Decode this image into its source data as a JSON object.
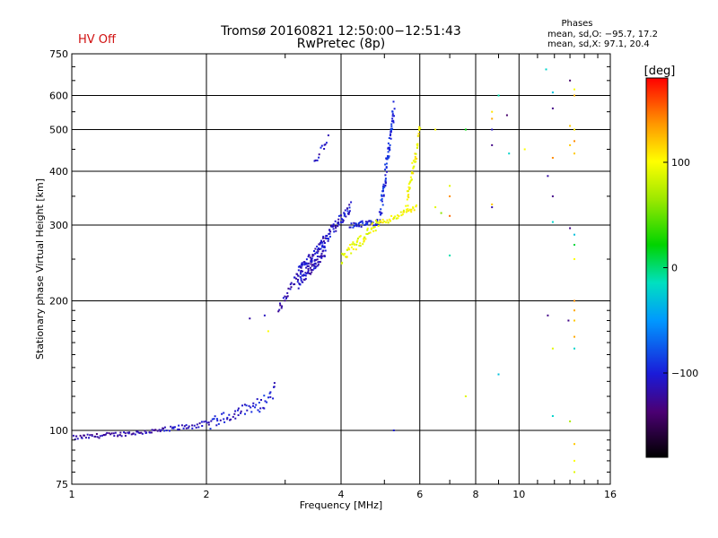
{
  "header": {
    "hv_status": "HV Off",
    "title_line1": "Tromsø 20160821 12:50:00−12:51:43",
    "title_line2": "RwPretec (8p)",
    "phases_title": "Phases",
    "phases_o": "mean, sd,O: −95.7, 17.2",
    "phases_x": "mean, sd,X:  97.1, 20.4"
  },
  "colorbar": {
    "label": "[deg]",
    "ticks": [
      "100",
      "0",
      "−100"
    ],
    "tick_values": [
      100,
      0,
      -100
    ],
    "range": [
      -180,
      180
    ]
  },
  "chart_data": {
    "type": "scatter",
    "xlabel": "Frequency [MHz]",
    "ylabel": "Stationary phase Virtual Height [km]",
    "xscale": "log",
    "yscale": "log",
    "xlim": [
      1,
      16
    ],
    "ylim": [
      75,
      750
    ],
    "xticks": [
      1,
      2,
      4,
      6,
      8,
      10,
      16
    ],
    "xtick_labels": [
      "1",
      "2",
      "4",
      "6",
      "8",
      "10",
      "16"
    ],
    "yticks": [
      75,
      100,
      200,
      300,
      400,
      500,
      600,
      750
    ],
    "ytick_labels": [
      "75",
      "100",
      "200",
      "300",
      "400",
      "500",
      "600",
      "750"
    ],
    "grid": true,
    "point_groups": [
      {
        "f_start": 1.0,
        "f_end": 1.6,
        "h_start": 96,
        "h_end": 100,
        "count": 70,
        "phase": -120,
        "jitter": 0.012
      },
      {
        "f_start": 1.6,
        "f_end": 2.05,
        "h_start": 100,
        "h_end": 104,
        "count": 35,
        "phase": -110,
        "jitter": 0.015
      },
      {
        "f_start": 2.05,
        "f_end": 2.6,
        "h_start": 104,
        "h_end": 115,
        "count": 40,
        "phase": -105,
        "jitter": 0.03
      },
      {
        "f_start": 2.6,
        "f_end": 2.85,
        "h_start": 112,
        "h_end": 125,
        "count": 18,
        "phase": -100,
        "jitter": 0.035
      },
      {
        "f_start": 2.9,
        "f_end": 3.2,
        "h_start": 190,
        "h_end": 230,
        "count": 25,
        "phase": -115,
        "jitter": 0.02
      },
      {
        "f_start": 3.2,
        "f_end": 3.7,
        "h_start": 225,
        "h_end": 270,
        "count": 140,
        "phase": -110,
        "jitter": 0.06
      },
      {
        "f_start": 3.7,
        "f_end": 4.2,
        "h_start": 280,
        "h_end": 330,
        "count": 55,
        "phase": -105,
        "jitter": 0.03
      },
      {
        "f_start": 4.2,
        "f_end": 4.9,
        "h_start": 300,
        "h_end": 305,
        "count": 40,
        "phase": -100,
        "jitter": 0.015
      },
      {
        "f_start": 4.9,
        "f_end": 5.25,
        "h_start": 320,
        "h_end": 560,
        "count": 80,
        "phase": -95,
        "jitter": 0.04
      },
      {
        "f_start": 3.5,
        "f_end": 3.75,
        "h_start": 420,
        "h_end": 480,
        "count": 12,
        "phase": -110,
        "jitter": 0.02
      },
      {
        "f_start": 4.0,
        "f_end": 4.8,
        "h_start": 250,
        "h_end": 300,
        "count": 55,
        "phase": 95,
        "jitter": 0.03
      },
      {
        "f_start": 4.8,
        "f_end": 5.9,
        "h_start": 300,
        "h_end": 330,
        "count": 45,
        "phase": 100,
        "jitter": 0.015
      },
      {
        "f_start": 5.6,
        "f_end": 6.0,
        "h_start": 330,
        "h_end": 500,
        "count": 45,
        "phase": 100,
        "jitter": 0.04
      }
    ],
    "points": [
      {
        "f": 2.7,
        "h": 185,
        "phase": -110
      },
      {
        "f": 2.5,
        "h": 182,
        "phase": -120
      },
      {
        "f": 2.75,
        "h": 170,
        "phase": 100
      },
      {
        "f": 5.25,
        "h": 100,
        "phase": -100
      },
      {
        "f": 6.5,
        "h": 500,
        "phase": 100
      },
      {
        "f": 6.5,
        "h": 330,
        "phase": 90
      },
      {
        "f": 6.7,
        "h": 320,
        "phase": 60
      },
      {
        "f": 7.0,
        "h": 370,
        "phase": 90
      },
      {
        "f": 7.0,
        "h": 350,
        "phase": 140
      },
      {
        "f": 7.0,
        "h": 315,
        "phase": 150
      },
      {
        "f": 7.0,
        "h": 255,
        "phase": -10
      },
      {
        "f": 7.6,
        "h": 500,
        "phase": 20
      },
      {
        "f": 7.6,
        "h": 120,
        "phase": 90
      },
      {
        "f": 8.7,
        "h": 550,
        "phase": 110
      },
      {
        "f": 8.7,
        "h": 530,
        "phase": 130
      },
      {
        "f": 8.7,
        "h": 500,
        "phase": -110
      },
      {
        "f": 8.7,
        "h": 460,
        "phase": -130
      },
      {
        "f": 8.7,
        "h": 335,
        "phase": 120
      },
      {
        "f": 8.7,
        "h": 330,
        "phase": -120
      },
      {
        "f": 9.0,
        "h": 600,
        "phase": -10
      },
      {
        "f": 9.0,
        "h": 135,
        "phase": -30
      },
      {
        "f": 9.4,
        "h": 540,
        "phase": -140
      },
      {
        "f": 9.5,
        "h": 440,
        "phase": -20
      },
      {
        "f": 10.3,
        "h": 450,
        "phase": 100
      },
      {
        "f": 11.5,
        "h": 690,
        "phase": -20
      },
      {
        "f": 11.6,
        "h": 390,
        "phase": -120
      },
      {
        "f": 11.6,
        "h": 185,
        "phase": -130
      },
      {
        "f": 11.9,
        "h": 610,
        "phase": -30
      },
      {
        "f": 11.9,
        "h": 560,
        "phase": -130
      },
      {
        "f": 11.9,
        "h": 430,
        "phase": 140
      },
      {
        "f": 11.9,
        "h": 350,
        "phase": -130
      },
      {
        "f": 11.9,
        "h": 305,
        "phase": -20
      },
      {
        "f": 11.9,
        "h": 155,
        "phase": 90
      },
      {
        "f": 11.9,
        "h": 108,
        "phase": -20
      },
      {
        "f": 13.0,
        "h": 650,
        "phase": -140
      },
      {
        "f": 13.3,
        "h": 620,
        "phase": 100
      },
      {
        "f": 13.3,
        "h": 600,
        "phase": 130
      },
      {
        "f": 13.0,
        "h": 510,
        "phase": 120
      },
      {
        "f": 13.3,
        "h": 500,
        "phase": 110
      },
      {
        "f": 13.3,
        "h": 470,
        "phase": 140
      },
      {
        "f": 13.3,
        "h": 440,
        "phase": 120
      },
      {
        "f": 13.0,
        "h": 295,
        "phase": -130
      },
      {
        "f": 13.3,
        "h": 285,
        "phase": -30
      },
      {
        "f": 13.3,
        "h": 270,
        "phase": 10
      },
      {
        "f": 13.3,
        "h": 250,
        "phase": 100
      },
      {
        "f": 13.3,
        "h": 200,
        "phase": 140
      },
      {
        "f": 13.3,
        "h": 190,
        "phase": 130
      },
      {
        "f": 13.3,
        "h": 180,
        "phase": 120
      },
      {
        "f": 13.3,
        "h": 165,
        "phase": 130
      },
      {
        "f": 13.3,
        "h": 155,
        "phase": -20
      },
      {
        "f": 13.0,
        "h": 105,
        "phase": 70
      },
      {
        "f": 13.3,
        "h": 93,
        "phase": 120
      },
      {
        "f": 13.3,
        "h": 85,
        "phase": 100
      },
      {
        "f": 13.3,
        "h": 80,
        "phase": 90
      },
      {
        "f": 12.9,
        "h": 180,
        "phase": -130
      },
      {
        "f": 13.0,
        "h": 460,
        "phase": 120
      }
    ]
  }
}
